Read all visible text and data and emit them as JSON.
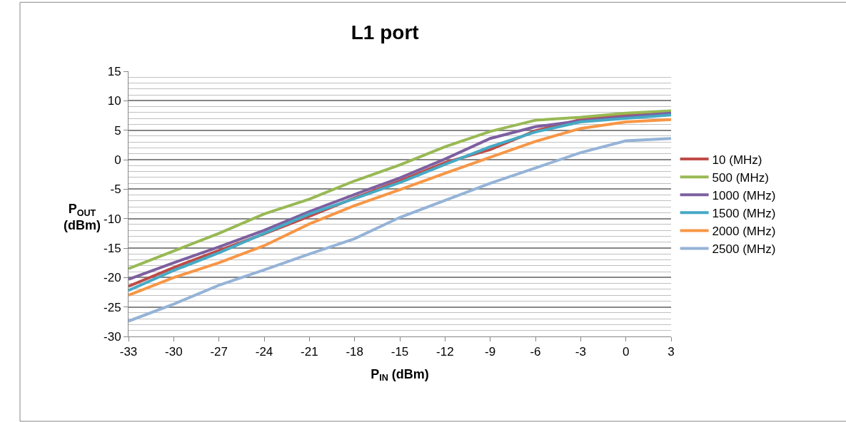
{
  "chart_data": {
    "type": "line",
    "title": "L1 port",
    "xlabel": "P$_{IN}$ (dBm)",
    "ylabel": "P$_{OUT}$\n(dBm)",
    "x": [
      -33,
      -30,
      -27,
      -24,
      -21,
      -18,
      -15,
      -12,
      -9,
      -6,
      -3,
      0,
      3
    ],
    "series": [
      {
        "name": "10 (MHz)",
        "color": "#be4b48",
        "values": [
          -21.5,
          -18.3,
          -15.4,
          -12.6,
          -9.6,
          -6.5,
          -3.6,
          -0.5,
          1.7,
          4.9,
          6.8,
          7.6,
          8.0
        ]
      },
      {
        "name": "500 (MHz)",
        "color": "#98b954",
        "values": [
          -18.5,
          -15.5,
          -12.5,
          -9.2,
          -6.7,
          -3.6,
          -0.9,
          2.2,
          4.8,
          6.7,
          7.2,
          7.9,
          8.3
        ]
      },
      {
        "name": "1000 (MHz)",
        "color": "#7d60a0",
        "values": [
          -20.3,
          -17.5,
          -14.8,
          -12.0,
          -8.8,
          -5.9,
          -3.1,
          0.1,
          3.6,
          5.6,
          6.6,
          7.3,
          7.9
        ]
      },
      {
        "name": "1500 (MHz)",
        "color": "#46aac5",
        "values": [
          -22.2,
          -18.8,
          -15.8,
          -12.5,
          -9.2,
          -6.6,
          -3.9,
          -0.8,
          2.2,
          4.7,
          6.4,
          7.0,
          7.6
        ]
      },
      {
        "name": "2000 (MHz)",
        "color": "#f79646",
        "values": [
          -23.0,
          -20.0,
          -17.5,
          -14.6,
          -10.9,
          -7.8,
          -5.1,
          -2.3,
          0.4,
          3.1,
          5.3,
          6.4,
          6.8
        ]
      },
      {
        "name": "2500 (MHz)",
        "color": "#95b3d7",
        "values": [
          -27.4,
          -24.5,
          -21.3,
          -18.7,
          -16.0,
          -13.4,
          -9.8,
          -6.9,
          -4.0,
          -1.4,
          1.2,
          3.2,
          3.6
        ]
      }
    ],
    "xlim": [
      -33,
      3
    ],
    "xticks": [
      -33,
      -30,
      -27,
      -24,
      -21,
      -18,
      -15,
      -12,
      -9,
      -6,
      -3,
      0,
      3
    ],
    "ylim": [
      -30,
      15
    ],
    "yticks": [
      -30,
      -25,
      -20,
      -15,
      -10,
      -5,
      0,
      5,
      10,
      15
    ],
    "grid": "y",
    "legend": "right",
    "marker": "none",
    "line_style": "solid"
  }
}
